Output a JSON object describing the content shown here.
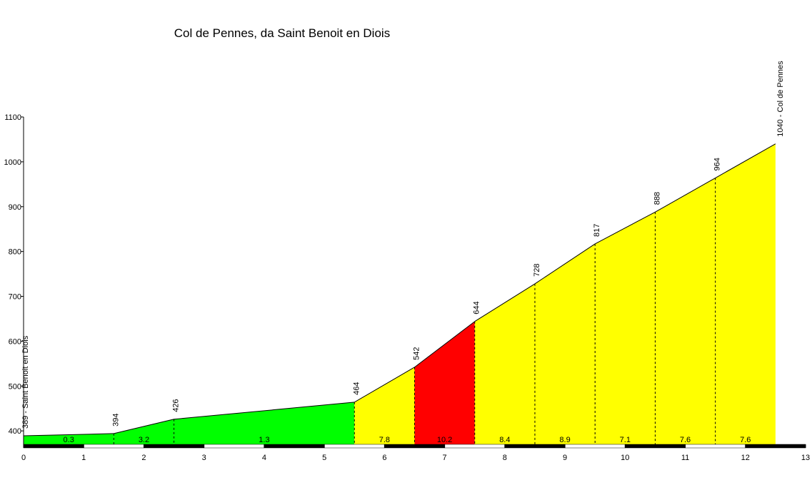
{
  "chart_data": {
    "type": "profile",
    "title": "Col de Pennes, da Saint Benoit en Diois",
    "x": [
      0,
      1.5,
      2.5,
      5.5,
      6.5,
      7.5,
      8.5,
      9.5,
      10.5,
      11.5,
      12.5
    ],
    "values": [
      389,
      394,
      426,
      464,
      542,
      644,
      728,
      817,
      888,
      964,
      1040
    ],
    "value_labels": [
      "389 - Saint Benoit en Diois",
      "394",
      "426",
      "464",
      "542",
      "644",
      "728",
      "817",
      "888",
      "964",
      "1040 - Col de Pennes"
    ],
    "gradients": [
      0.3,
      3.2,
      1.3,
      7.8,
      10.2,
      8.4,
      8.9,
      7.1,
      7.6,
      7.6
    ],
    "segment_colors": [
      "#00ff00",
      "#00ff00",
      "#00ff00",
      "#ffff00",
      "#ff0000",
      "#ffff00",
      "#ffff00",
      "#ffff00",
      "#ffff00",
      "#ffff00"
    ],
    "xlim": [
      0,
      13
    ],
    "xticks": [
      0,
      1,
      2,
      3,
      4,
      5,
      6,
      7,
      8,
      9,
      10,
      11,
      12,
      13
    ],
    "ylim": [
      370,
      1100
    ],
    "yticks": [
      400,
      500,
      600,
      700,
      800,
      900,
      1000,
      1100
    ]
  }
}
